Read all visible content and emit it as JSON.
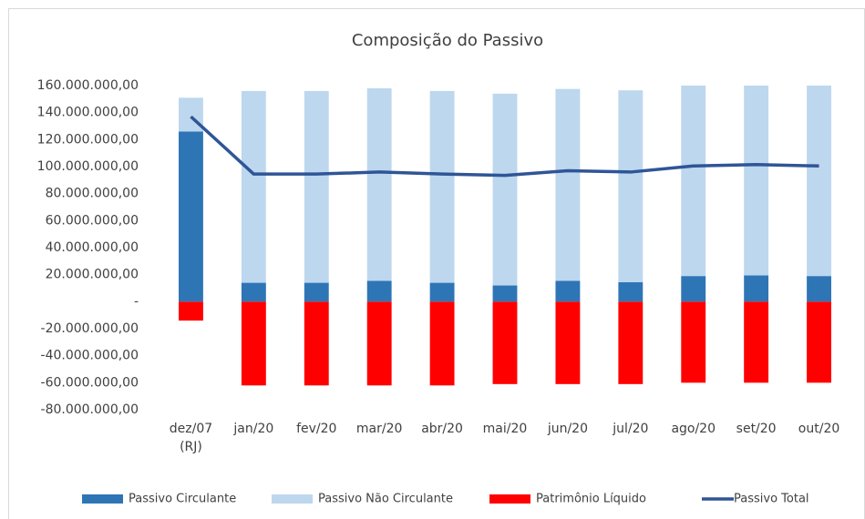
{
  "chart_data": {
    "type": "bar",
    "stacked": true,
    "title": "Composição do Passivo",
    "categories": [
      "dez/07\n(RJ)",
      "jan/20",
      "fev/20",
      "mar/20",
      "abr/20",
      "mai/20",
      "jun/20",
      "jul/20",
      "ago/20",
      "set/20",
      "out/20"
    ],
    "series": [
      {
        "name": "Passivo Circulante",
        "type": "bar",
        "color": "#2e75b6",
        "values": [
          126000000,
          14000000,
          14000000,
          15500000,
          14000000,
          12000000,
          15500000,
          14500000,
          19000000,
          19500000,
          19000000
        ]
      },
      {
        "name": "Passivo Não Circulante",
        "type": "bar",
        "color": "#bdd7ee",
        "values": [
          25000000,
          142000000,
          142000000,
          142500000,
          142000000,
          142000000,
          142000000,
          142000000,
          141500000,
          142000000,
          141500000
        ]
      },
      {
        "name": "Patrimônio Líquido",
        "type": "bar",
        "color": "#ff0000",
        "values": [
          -14000000,
          -62000000,
          -62000000,
          -62000000,
          -62000000,
          -61000000,
          -61000000,
          -61000000,
          -60000000,
          -60000000,
          -60000000
        ]
      },
      {
        "name": "Passivo Total",
        "type": "line",
        "color": "#2f5597",
        "values": [
          137000000,
          94500000,
          94500000,
          96000000,
          94500000,
          93500000,
          97000000,
          96000000,
          100500000,
          101500000,
          100500000
        ]
      }
    ],
    "ylim": [
      -80000000,
      160000000
    ],
    "yticks": [
      {
        "value": -80000000,
        "label": "-80.000.000,00"
      },
      {
        "value": -60000000,
        "label": "-60.000.000,00"
      },
      {
        "value": -40000000,
        "label": "-40.000.000,00"
      },
      {
        "value": -20000000,
        "label": "-20.000.000,00"
      },
      {
        "value": 0,
        "label": "-"
      },
      {
        "value": 20000000,
        "label": "20.000.000,00"
      },
      {
        "value": 40000000,
        "label": "40.000.000,00"
      },
      {
        "value": 60000000,
        "label": "60.000.000,00"
      },
      {
        "value": 80000000,
        "label": "80.000.000,00"
      },
      {
        "value": 100000000,
        "label": "100.000.000,00"
      },
      {
        "value": 120000000,
        "label": "120.000.000,00"
      },
      {
        "value": 140000000,
        "label": "140.000.000,00"
      },
      {
        "value": 160000000,
        "label": "160.000.000,00"
      }
    ],
    "grid": false,
    "legend": "bottom"
  }
}
